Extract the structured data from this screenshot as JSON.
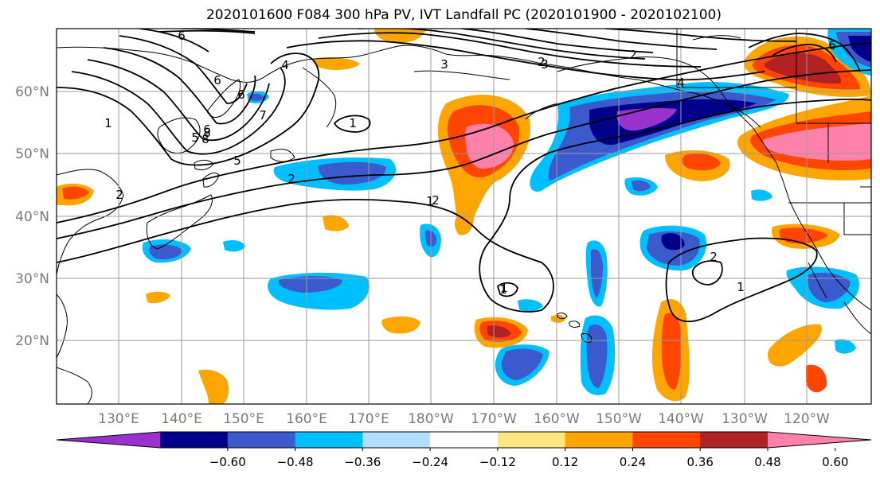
{
  "title": "2020101600 F084 300 hPa PV, IVT Landfall PC (2020101900 - 2020102100)",
  "map": {
    "lon_ticks": [
      "130°E",
      "140°E",
      "150°E",
      "160°E",
      "170°E",
      "180°W",
      "170°W",
      "160°W",
      "150°W",
      "140°W",
      "130°W",
      "120°W"
    ],
    "lat_ticks": [
      "60°N",
      "50°N",
      "40°N",
      "30°N",
      "20°N"
    ],
    "gridlines": true,
    "contour_field": "300 hPa PV",
    "contour_labels": [
      "6",
      "6",
      "6",
      "5",
      "4",
      "3",
      "2",
      "2",
      "2",
      "2",
      "2",
      "1",
      "1",
      "1",
      "1",
      "1",
      "2",
      "3",
      "4",
      "5",
      "6",
      "7",
      "8",
      "8",
      "6",
      "1"
    ],
    "shaded_field": "IVT Landfall PC"
  },
  "colorbar": {
    "tick_labels": [
      "−0.60",
      "−0.48",
      "−0.36",
      "−0.24",
      "−0.12",
      "0.12",
      "0.24",
      "0.36",
      "0.48",
      "0.60"
    ],
    "levels": [
      -0.6,
      -0.48,
      -0.36,
      -0.24,
      -0.12,
      0.12,
      0.24,
      0.36,
      0.48,
      0.6
    ],
    "colors": [
      "#9932CC",
      "#00008B",
      "#3A5ACD",
      "#00BFFF",
      "#B0E0FF",
      "#FFFFFF",
      "#FFE680",
      "#FFA500",
      "#FF4500",
      "#B22222",
      "#FF80AA"
    ],
    "extend": "both"
  }
}
